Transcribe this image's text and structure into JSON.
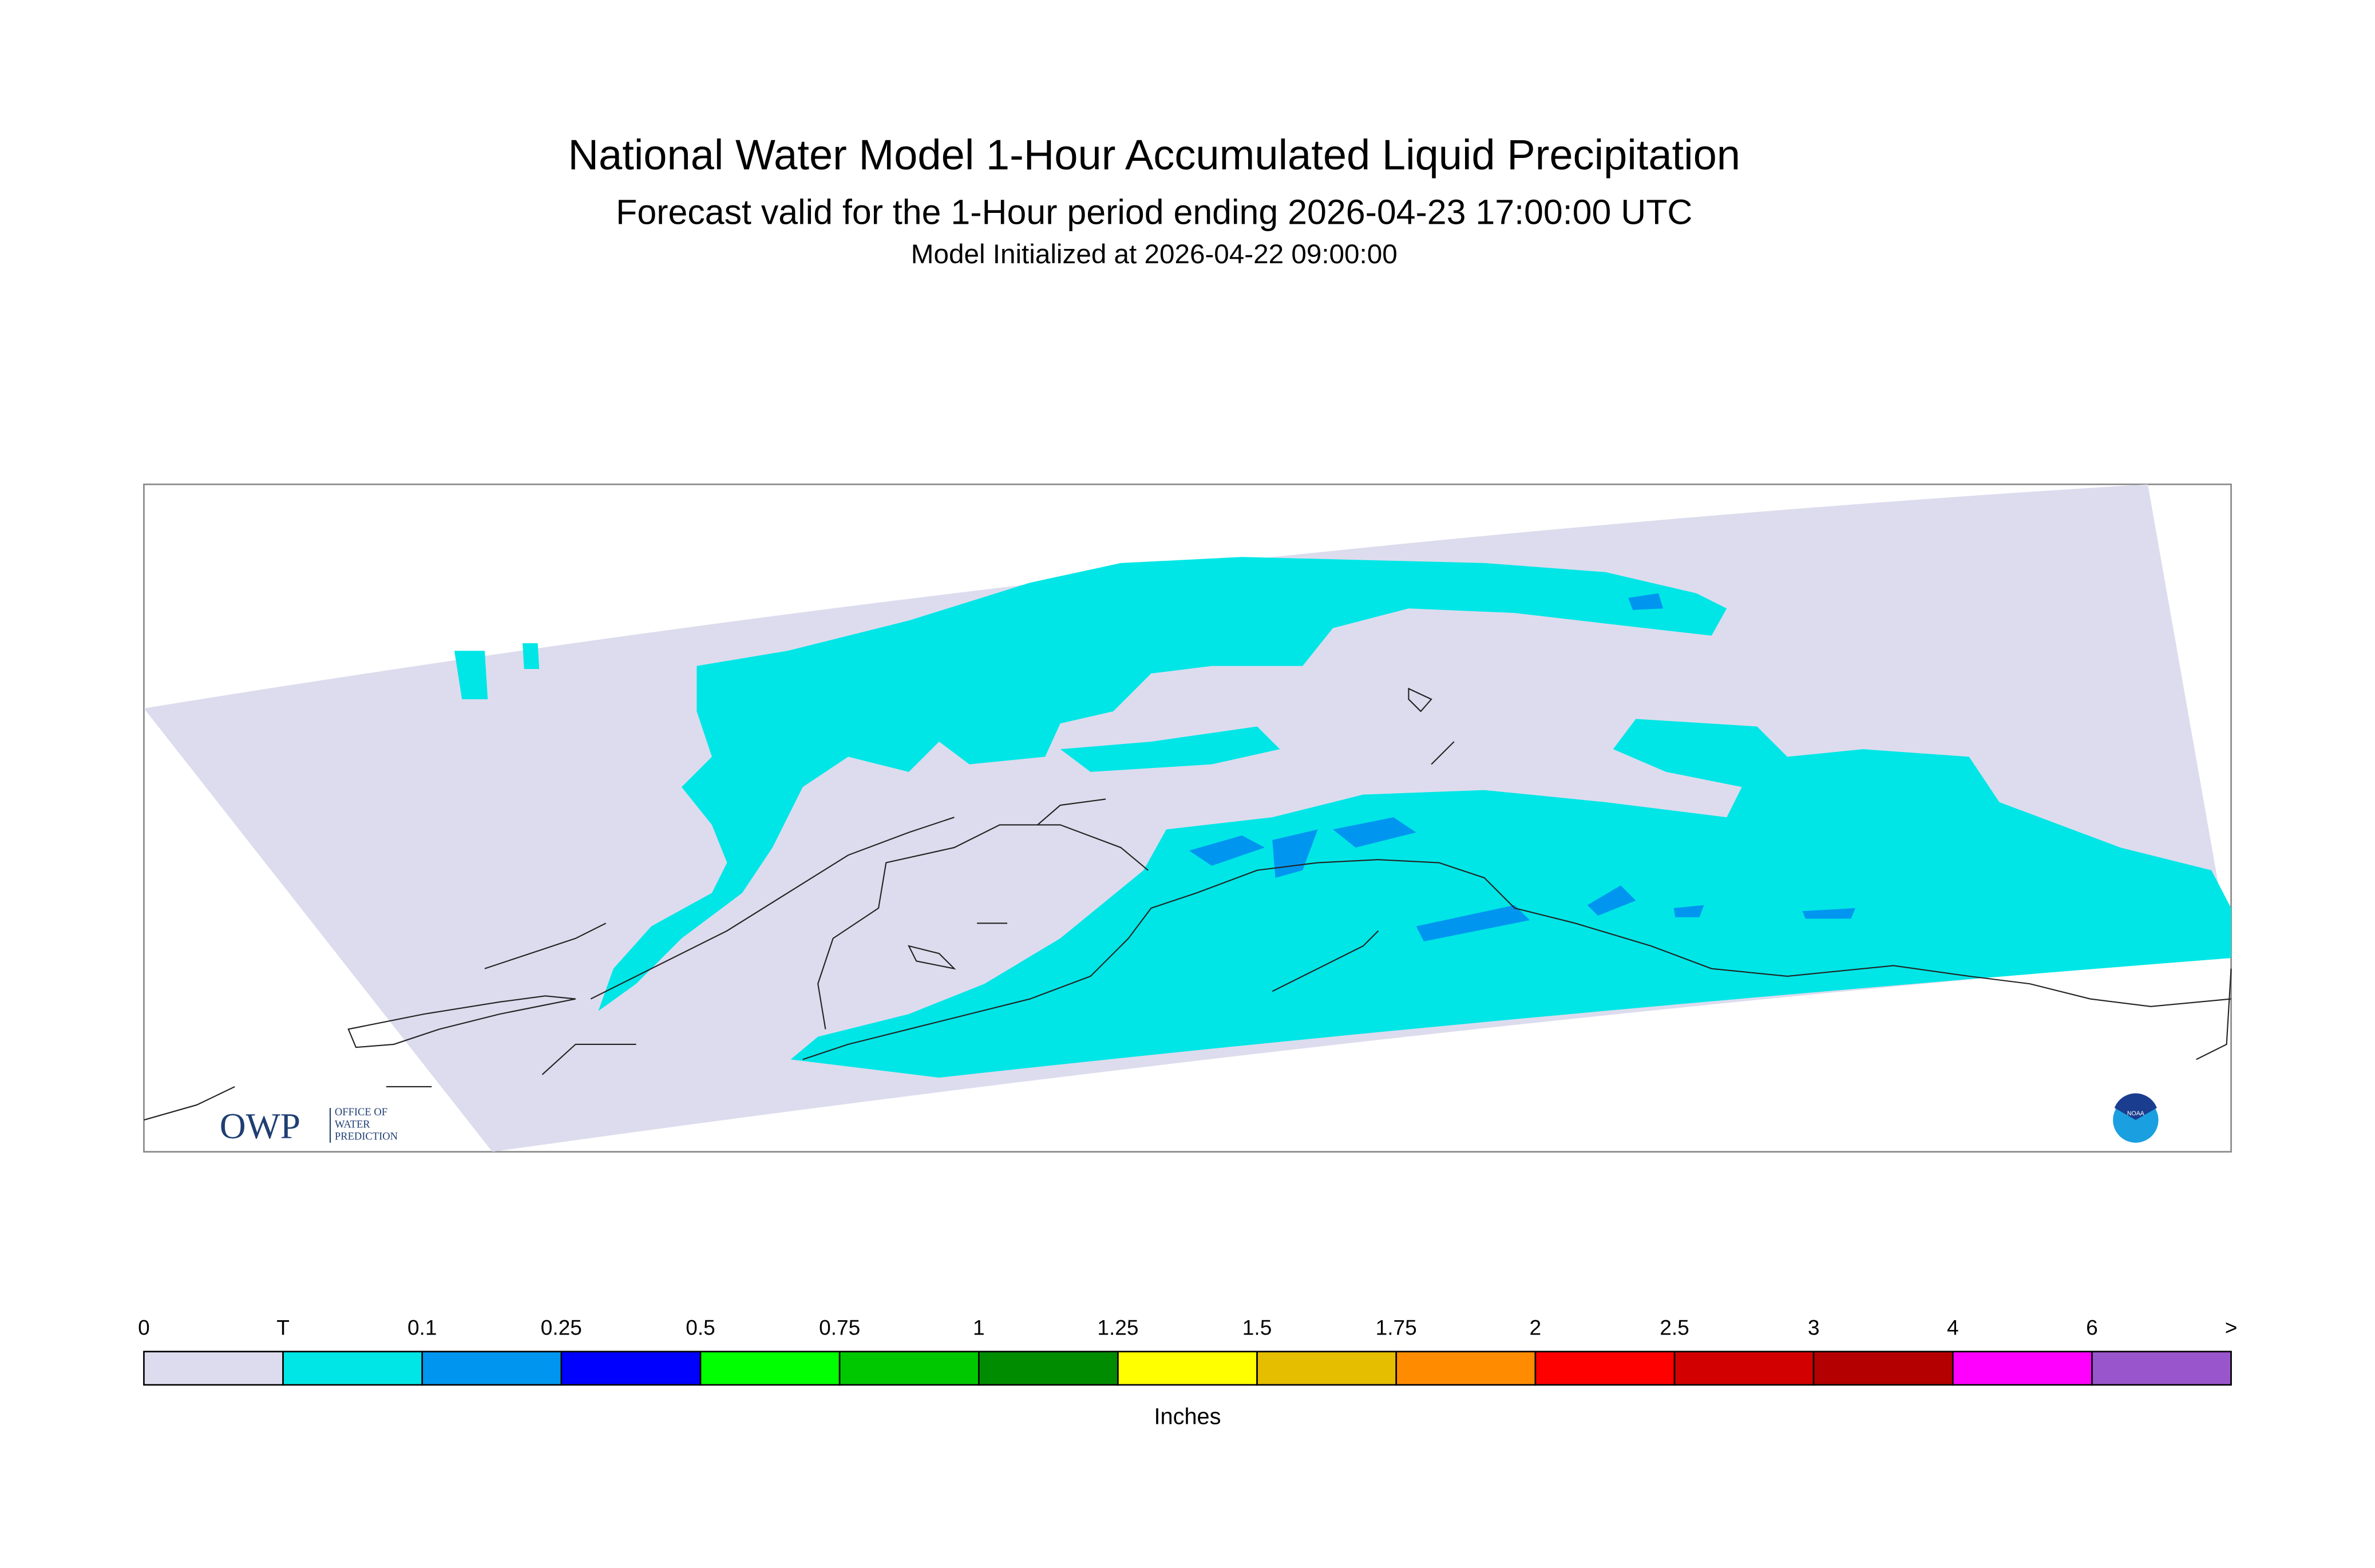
{
  "header": {
    "title": "National Water Model 1-Hour Accumulated Liquid Precipitation",
    "subtitle": "Forecast valid for the 1-Hour period ending 2026-04-23 17:00:00 UTC",
    "initialized": "Model Initialized at 2026-04-22 09:00:00"
  },
  "logos": {
    "owp": "OWP",
    "owp_lines": [
      "OFFICE OF",
      "WATER",
      "PREDICTION"
    ],
    "noaa": "NOAA"
  },
  "legend": {
    "labels": [
      "0",
      "T",
      "0.1",
      "0.25",
      "0.5",
      "0.75",
      "1",
      "1.25",
      "1.5",
      "1.75",
      "2",
      "2.5",
      "3",
      "4",
      "6",
      ">"
    ],
    "colors": [
      "#dcdcee",
      "#00e6e6",
      "#0096f0",
      "#0000ff",
      "#00ff00",
      "#00c800",
      "#008c00",
      "#ffff00",
      "#e6be00",
      "#ff8c00",
      "#ff0000",
      "#d20000",
      "#b40000",
      "#ff00ff",
      "#9955cc"
    ],
    "unit": "Inches"
  }
}
